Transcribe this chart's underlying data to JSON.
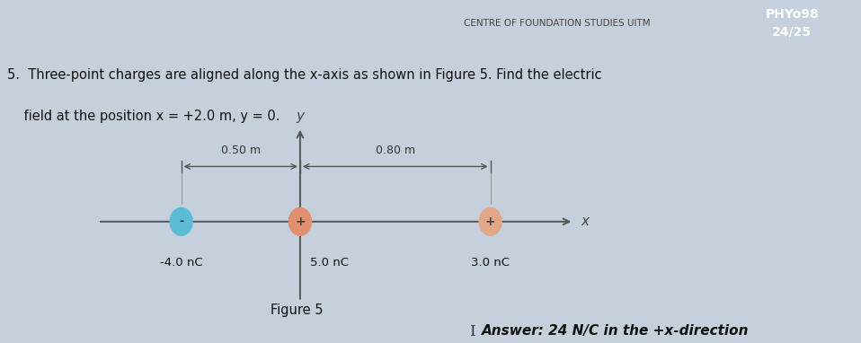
{
  "bg_color": "#c5d0dc",
  "header_text": "CENTRE OF FOUNDATION STUDIES UITM",
  "header_box_color": "#dce4ed",
  "header_right_text": "PHYo98\n24/25",
  "header_right_bg": "#5040a0",
  "question_line1": "5.  Three-point charges are aligned along the x-axis as shown in Figure 5. Find the electric",
  "question_line2": "    field at the position x = +2.0 m, y = 0.",
  "figure_label": "Figure 5",
  "answer_text": "Answer: 24 N/C in the +x-direction",
  "axis_color": "#555555",
  "charge1_color": "#5bbcd4",
  "charge1_label": "-4.0 nC",
  "charge1_sign": "-",
  "charge2_color": "#e09070",
  "charge2_label": "5.0 nC",
  "charge2_sign": "+",
  "charge3_color": "#e0a888",
  "charge3_label": "3.0 nC",
  "charge3_sign": "+",
  "dim_label1": "0.50 m",
  "dim_label2": "0.80 m",
  "x_label": "x",
  "y_label": "y"
}
